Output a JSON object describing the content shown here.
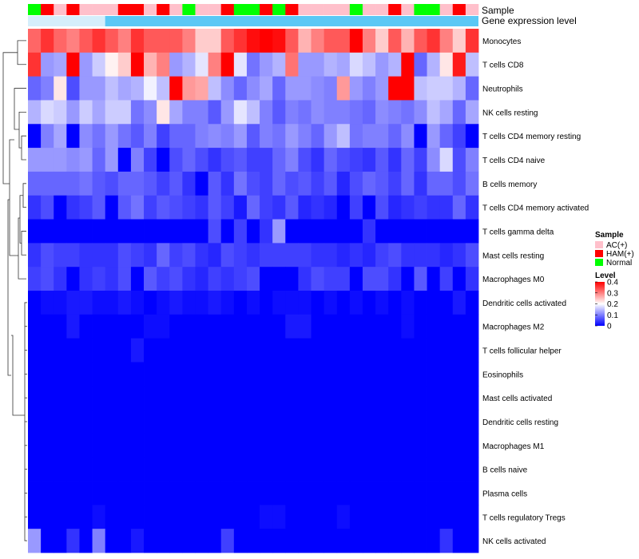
{
  "chart_data": {
    "type": "heatmap",
    "title": "",
    "annotation_tracks": [
      {
        "name": "Sample",
        "label": "Sample"
      },
      {
        "name": "Gene expression level",
        "label": "Gene expression level"
      }
    ],
    "rows": [
      "Monocytes",
      "T cells CD8",
      "Neutrophils",
      "NK cells resting",
      "T cells CD4 memory resting",
      "T cells CD4 naive",
      "B cells memory",
      "T cells CD4 memory activated",
      "T cells gamma delta",
      "Mast cells resting",
      "Macrophages M0",
      "Dendritic cells activated",
      "Macrophages M2",
      "T cells follicular helper",
      "Eosinophils",
      "Mast cells activated",
      "Dendritic cells resting",
      "Macrophages M1",
      "B cells naive",
      "Plasma cells",
      "T cells regulatory  Tregs",
      "NK cells activated"
    ],
    "sample_groups": [
      "Normal",
      "HAM(+)",
      "AC(+)",
      "HAM(+)",
      "AC(+)",
      "AC(+)",
      "AC(+)",
      "HAM(+)",
      "HAM(+)",
      "AC(+)",
      "HAM(+)",
      "AC(+)",
      "Normal",
      "AC(+)",
      "AC(+)",
      "HAM(+)",
      "Normal",
      "Normal",
      "HAM(+)",
      "Normal",
      "HAM(+)",
      "AC(+)",
      "AC(+)",
      "AC(+)",
      "AC(+)",
      "Normal",
      "AC(+)",
      "AC(+)",
      "HAM(+)",
      "AC(+)",
      "Normal",
      "Normal",
      "AC(+)",
      "HAM(+)",
      "AC(+)"
    ],
    "values": [
      [
        0.32,
        0.36,
        0.32,
        0.3,
        0.33,
        0.36,
        0.33,
        0.3,
        0.36,
        0.33,
        0.33,
        0.33,
        0.3,
        0.24,
        0.24,
        0.33,
        0.36,
        0.39,
        0.42,
        0.39,
        0.33,
        0.26,
        0.3,
        0.33,
        0.33,
        0.42,
        0.3,
        0.24,
        0.33,
        0.26,
        0.33,
        0.36,
        0.3,
        0.24,
        0.36
      ],
      [
        0.36,
        0.12,
        0.13,
        0.4,
        0.12,
        0.16,
        0.21,
        0.24,
        0.4,
        0.26,
        0.3,
        0.12,
        0.14,
        0.18,
        0.3,
        0.42,
        0.18,
        0.09,
        0.12,
        0.14,
        0.31,
        0.12,
        0.12,
        0.14,
        0.13,
        0.17,
        0.15,
        0.12,
        0.14,
        0.4,
        0.08,
        0.14,
        0.22,
        0.38,
        0.15
      ],
      [
        0.08,
        0.1,
        0.22,
        0.06,
        0.12,
        0.12,
        0.15,
        0.13,
        0.14,
        0.19,
        0.15,
        0.4,
        0.28,
        0.27,
        0.15,
        0.11,
        0.08,
        0.11,
        0.13,
        0.08,
        0.12,
        0.12,
        0.11,
        0.1,
        0.28,
        0.12,
        0.1,
        0.12,
        0.42,
        0.4,
        0.15,
        0.16,
        0.16,
        0.14,
        0.08
      ],
      [
        0.14,
        0.17,
        0.16,
        0.12,
        0.16,
        0.13,
        0.16,
        0.16,
        0.09,
        0.11,
        0.22,
        0.13,
        0.1,
        0.1,
        0.07,
        0.12,
        0.18,
        0.15,
        0.1,
        0.07,
        0.1,
        0.09,
        0.11,
        0.1,
        0.1,
        0.09,
        0.08,
        0.11,
        0.1,
        0.09,
        0.11,
        0.15,
        0.13,
        0.08,
        0.13
      ],
      [
        0.0,
        0.1,
        0.13,
        0.0,
        0.11,
        0.09,
        0.12,
        0.09,
        0.07,
        0.1,
        0.05,
        0.08,
        0.08,
        0.1,
        0.11,
        0.1,
        0.12,
        0.07,
        0.1,
        0.09,
        0.12,
        0.1,
        0.08,
        0.12,
        0.15,
        0.09,
        0.1,
        0.1,
        0.08,
        0.11,
        0.0,
        0.12,
        0.08,
        0.05,
        0.0
      ],
      [
        0.12,
        0.12,
        0.12,
        0.11,
        0.12,
        0.08,
        0.12,
        0.0,
        0.1,
        0.05,
        0.0,
        0.06,
        0.08,
        0.06,
        0.04,
        0.06,
        0.07,
        0.05,
        0.05,
        0.08,
        0.1,
        0.06,
        0.04,
        0.08,
        0.06,
        0.05,
        0.04,
        0.07,
        0.04,
        0.08,
        0.05,
        0.11,
        0.17,
        0.06,
        0.1
      ],
      [
        0.08,
        0.08,
        0.08,
        0.08,
        0.09,
        0.07,
        0.06,
        0.08,
        0.08,
        0.07,
        0.05,
        0.07,
        0.04,
        0.0,
        0.07,
        0.04,
        0.09,
        0.06,
        0.05,
        0.08,
        0.06,
        0.07,
        0.05,
        0.07,
        0.03,
        0.06,
        0.08,
        0.07,
        0.05,
        0.08,
        0.04,
        0.08,
        0.08,
        0.06,
        0.09
      ],
      [
        0.04,
        0.06,
        0.0,
        0.04,
        0.05,
        0.07,
        0.0,
        0.07,
        0.09,
        0.05,
        0.07,
        0.06,
        0.05,
        0.04,
        0.07,
        0.05,
        0.02,
        0.08,
        0.05,
        0.04,
        0.07,
        0.03,
        0.04,
        0.03,
        0.0,
        0.05,
        0.0,
        0.06,
        0.03,
        0.04,
        0.05,
        0.04,
        0.04,
        0.08,
        0.04
      ],
      [
        0.0,
        0.0,
        0.0,
        0.0,
        0.0,
        0.0,
        0.0,
        0.0,
        0.0,
        0.0,
        0.0,
        0.0,
        0.0,
        0.0,
        0.06,
        0.0,
        0.05,
        0.0,
        0.04,
        0.12,
        0.0,
        0.0,
        0.0,
        0.0,
        0.0,
        0.0,
        0.04,
        0.0,
        0.0,
        0.0,
        0.0,
        0.0,
        0.0,
        0.0,
        0.0
      ],
      [
        0.04,
        0.06,
        0.05,
        0.05,
        0.04,
        0.04,
        0.04,
        0.06,
        0.05,
        0.04,
        0.08,
        0.05,
        0.06,
        0.04,
        0.03,
        0.06,
        0.05,
        0.04,
        0.05,
        0.05,
        0.05,
        0.05,
        0.04,
        0.04,
        0.03,
        0.04,
        0.03,
        0.05,
        0.06,
        0.04,
        0.04,
        0.04,
        0.03,
        0.04,
        0.06
      ],
      [
        0.05,
        0.06,
        0.04,
        0.0,
        0.04,
        0.05,
        0.04,
        0.06,
        0.0,
        0.07,
        0.05,
        0.06,
        0.04,
        0.03,
        0.05,
        0.04,
        0.05,
        0.06,
        0.0,
        0.0,
        0.0,
        0.04,
        0.06,
        0.05,
        0.05,
        0.0,
        0.06,
        0.06,
        0.04,
        0.0,
        0.07,
        0.0,
        0.05,
        0.0,
        0.04
      ],
      [
        0.0,
        0.01,
        0.01,
        0.02,
        0.02,
        0.01,
        0.01,
        0.02,
        0.01,
        0.0,
        0.01,
        0.02,
        0.01,
        0.01,
        0.02,
        0.01,
        0.0,
        0.01,
        0.0,
        0.01,
        0.01,
        0.01,
        0.0,
        0.01,
        0.0,
        0.01,
        0.0,
        0.01,
        0.0,
        0.01,
        0.0,
        0.0,
        0.0,
        0.02,
        0.0
      ],
      [
        0.0,
        0.0,
        0.0,
        0.02,
        0.0,
        0.0,
        0.0,
        0.0,
        0.0,
        0.01,
        0.01,
        0.0,
        0.0,
        0.0,
        0.0,
        0.0,
        0.0,
        0.0,
        0.0,
        0.0,
        0.02,
        0.02,
        0.0,
        0.0,
        0.0,
        0.0,
        0.0,
        0.0,
        0.0,
        0.01,
        0.0,
        0.0,
        0.0,
        0.0,
        0.0
      ],
      [
        0.0,
        0.0,
        0.0,
        0.0,
        0.0,
        0.0,
        0.0,
        0.0,
        0.02,
        0.0,
        0.0,
        0.0,
        0.0,
        0.0,
        0.0,
        0.0,
        0.0,
        0.0,
        0.0,
        0.0,
        0.0,
        0.0,
        0.0,
        0.0,
        0.0,
        0.0,
        0.0,
        0.0,
        0.0,
        0.0,
        0.0,
        0.0,
        0.0,
        0.0,
        0.0
      ],
      [
        0.0,
        0.0,
        0.0,
        0.0,
        0.0,
        0.0,
        0.0,
        0.0,
        0.0,
        0.0,
        0.0,
        0.0,
        0.0,
        0.0,
        0.0,
        0.0,
        0.0,
        0.0,
        0.0,
        0.0,
        0.0,
        0.0,
        0.0,
        0.0,
        0.0,
        0.0,
        0.0,
        0.0,
        0.0,
        0.0,
        0.0,
        0.0,
        0.0,
        0.0,
        0.0
      ],
      [
        0.0,
        0.0,
        0.0,
        0.0,
        0.0,
        0.0,
        0.0,
        0.0,
        0.0,
        0.0,
        0.0,
        0.0,
        0.0,
        0.0,
        0.0,
        0.0,
        0.0,
        0.0,
        0.0,
        0.0,
        0.0,
        0.0,
        0.0,
        0.0,
        0.0,
        0.0,
        0.0,
        0.0,
        0.0,
        0.0,
        0.0,
        0.0,
        0.0,
        0.0,
        0.0
      ],
      [
        0.0,
        0.0,
        0.0,
        0.0,
        0.0,
        0.0,
        0.0,
        0.0,
        0.0,
        0.0,
        0.0,
        0.0,
        0.0,
        0.0,
        0.0,
        0.0,
        0.0,
        0.0,
        0.0,
        0.0,
        0.0,
        0.0,
        0.0,
        0.0,
        0.0,
        0.0,
        0.0,
        0.0,
        0.0,
        0.0,
        0.0,
        0.0,
        0.0,
        0.0,
        0.0
      ],
      [
        0.0,
        0.0,
        0.0,
        0.0,
        0.0,
        0.0,
        0.0,
        0.0,
        0.0,
        0.0,
        0.0,
        0.0,
        0.0,
        0.0,
        0.0,
        0.0,
        0.0,
        0.0,
        0.0,
        0.0,
        0.0,
        0.0,
        0.0,
        0.0,
        0.0,
        0.0,
        0.0,
        0.0,
        0.0,
        0.0,
        0.0,
        0.0,
        0.0,
        0.0,
        0.0
      ],
      [
        0.0,
        0.0,
        0.0,
        0.0,
        0.0,
        0.0,
        0.0,
        0.0,
        0.0,
        0.0,
        0.0,
        0.0,
        0.0,
        0.0,
        0.0,
        0.0,
        0.0,
        0.0,
        0.0,
        0.0,
        0.0,
        0.0,
        0.0,
        0.0,
        0.0,
        0.0,
        0.0,
        0.0,
        0.0,
        0.0,
        0.0,
        0.0,
        0.0,
        0.0,
        0.0
      ],
      [
        0.0,
        0.0,
        0.0,
        0.0,
        0.0,
        0.0,
        0.0,
        0.0,
        0.0,
        0.0,
        0.0,
        0.0,
        0.0,
        0.0,
        0.0,
        0.0,
        0.0,
        0.0,
        0.0,
        0.0,
        0.0,
        0.0,
        0.0,
        0.0,
        0.0,
        0.0,
        0.0,
        0.0,
        0.0,
        0.0,
        0.0,
        0.0,
        0.0,
        0.0,
        0.0
      ],
      [
        0.0,
        0.0,
        0.0,
        0.0,
        0.0,
        0.01,
        0.0,
        0.0,
        0.0,
        0.0,
        0.0,
        0.0,
        0.0,
        0.0,
        0.0,
        0.0,
        0.0,
        0.0,
        0.01,
        0.01,
        0.0,
        0.0,
        0.0,
        0.0,
        0.01,
        0.0,
        0.0,
        0.0,
        0.0,
        0.0,
        0.0,
        0.0,
        0.0,
        0.0,
        0.0
      ],
      [
        0.12,
        0.0,
        0.0,
        0.04,
        0.0,
        0.1,
        0.0,
        0.0,
        0.02,
        0.0,
        0.0,
        0.0,
        0.0,
        0.0,
        0.0,
        0.05,
        0.0,
        0.0,
        0.0,
        0.0,
        0.0,
        0.0,
        0.0,
        0.0,
        0.0,
        0.0,
        0.0,
        0.0,
        0.0,
        0.0,
        0.0,
        0.0,
        0.04,
        0.0,
        0.0
      ]
    ],
    "color_scale": {
      "min": 0,
      "max": 0.4,
      "low": "#0000ff",
      "mid_value": 0.2,
      "mid": "#ffffff",
      "high": "#ff0000"
    },
    "legend": {
      "sample": {
        "title": "Sample",
        "entries": [
          {
            "label": "AC(+)",
            "color": "#ffc0cb"
          },
          {
            "label": "HAM(+)",
            "color": "#ff0000"
          },
          {
            "label": "Normal",
            "color": "#00ff00"
          }
        ]
      },
      "level": {
        "title": "Level",
        "ticks": [
          "0.4",
          "0.3",
          "0.2",
          "0.1",
          "0"
        ],
        "tick_values": [
          0.4,
          0.3,
          0.2,
          0.1,
          0
        ]
      }
    },
    "gene_expression_color": "#5bc8f5",
    "row_dendrogram": true
  }
}
